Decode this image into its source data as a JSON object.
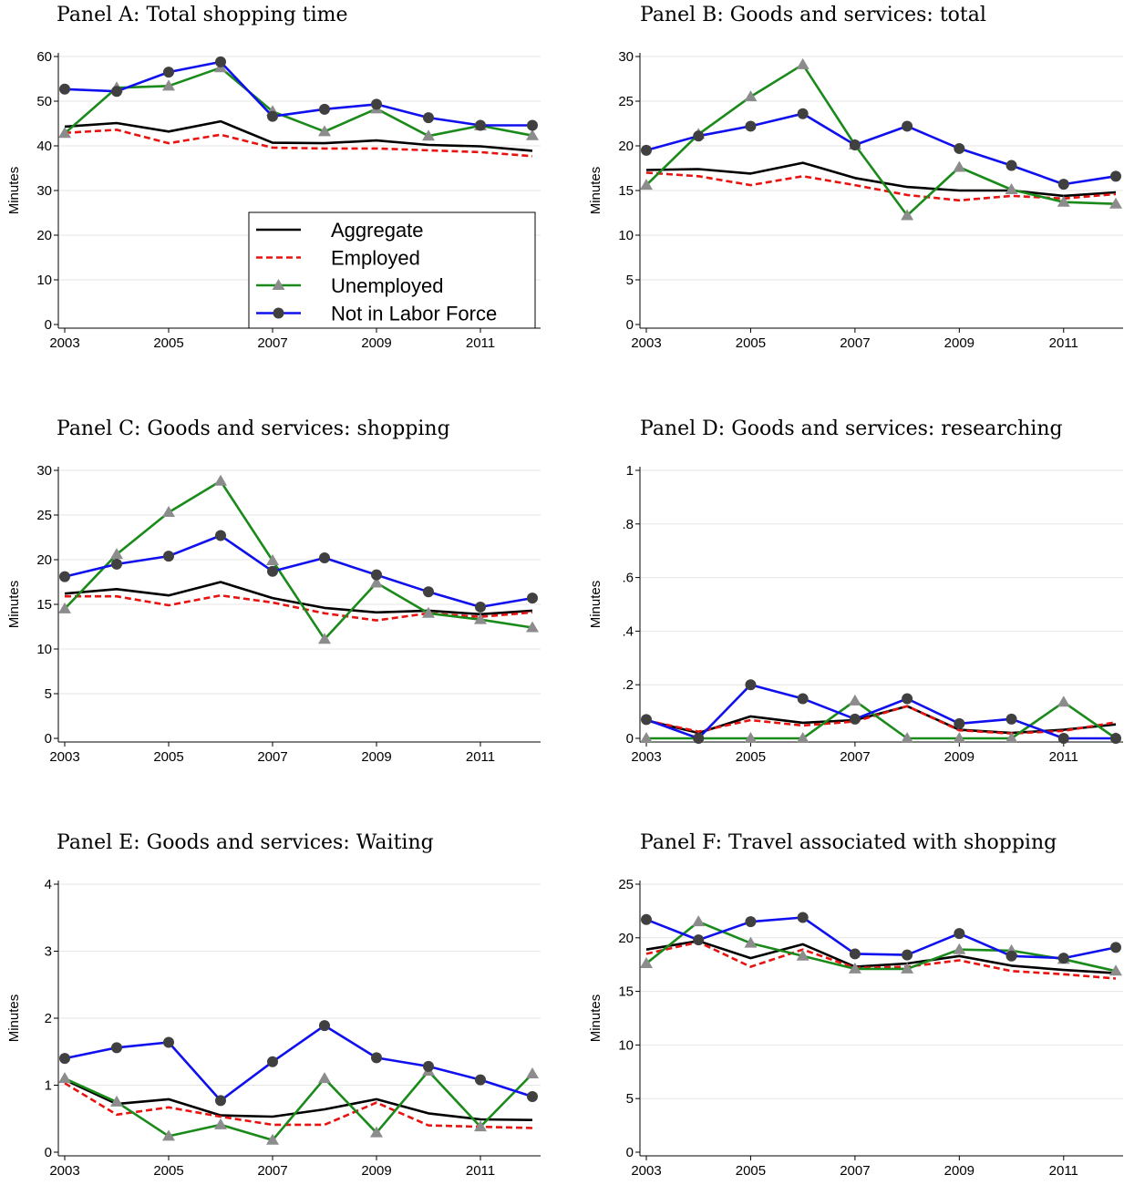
{
  "colors": {
    "aggregate": "#000000",
    "employed": "#e8120f",
    "unemployed": "#1a8a1a",
    "nilf": "#1010ee",
    "marker_triangle": "#8c8c8c",
    "marker_circle": "#404040",
    "grid": "#e6e6e6"
  },
  "legend": {
    "placement": "inside panel A, lower-right",
    "entries": [
      {
        "key": "aggregate",
        "label": "Aggregate",
        "style": "solid"
      },
      {
        "key": "employed",
        "label": "Employed",
        "style": "dashed"
      },
      {
        "key": "unemployed",
        "label": "Unemployed",
        "style": "solid",
        "marker": "triangle"
      },
      {
        "key": "nilf",
        "label": "Not in Labor Force",
        "style": "solid",
        "marker": "circle"
      }
    ]
  },
  "chart_data": [
    {
      "type": "line",
      "title": "Panel A: Total shopping time",
      "ylabel": "Minutes",
      "x": [
        2003,
        2004,
        2005,
        2006,
        2007,
        2008,
        2009,
        2010,
        2011,
        2012
      ],
      "xticks": [
        "2003",
        "2005",
        "2007",
        "2009",
        "2011"
      ],
      "yticks": [
        "0",
        "10",
        "20",
        "30",
        "40",
        "50",
        "60"
      ],
      "ylim": [
        0,
        61
      ],
      "grid": true,
      "series": [
        {
          "name": "Aggregate",
          "key": "aggregate",
          "values": [
            44.3,
            45.1,
            43.2,
            45.5,
            40.7,
            40.6,
            41.2,
            40.2,
            39.9,
            38.9
          ]
        },
        {
          "name": "Employed",
          "key": "employed",
          "values": [
            42.9,
            43.6,
            40.6,
            42.5,
            39.6,
            39.4,
            39.4,
            39.0,
            38.6,
            37.7
          ]
        },
        {
          "name": "Unemployed",
          "key": "unemployed",
          "values": [
            42.8,
            53.0,
            53.4,
            57.5,
            47.7,
            43.2,
            48.3,
            42.2,
            44.5,
            42.3
          ]
        },
        {
          "name": "Not in Labor Force",
          "key": "nilf",
          "values": [
            52.7,
            52.2,
            56.5,
            58.8,
            46.6,
            48.2,
            49.3,
            46.3,
            44.6,
            44.6
          ]
        }
      ]
    },
    {
      "type": "line",
      "title": "Panel B: Goods and services: total",
      "ylabel": "Minutes",
      "x": [
        2003,
        2004,
        2005,
        2006,
        2007,
        2008,
        2009,
        2010,
        2011,
        2012
      ],
      "xticks": [
        "2003",
        "2005",
        "2007",
        "2009",
        "2011"
      ],
      "yticks": [
        "0",
        "5",
        "10",
        "15",
        "20",
        "25",
        "30"
      ],
      "ylim": [
        0,
        30.5
      ],
      "grid": true,
      "series": [
        {
          "name": "Aggregate",
          "key": "aggregate",
          "values": [
            17.3,
            17.4,
            16.9,
            18.1,
            16.4,
            15.4,
            15.0,
            15.0,
            14.4,
            14.8
          ]
        },
        {
          "name": "Employed",
          "key": "employed",
          "values": [
            17.0,
            16.6,
            15.6,
            16.6,
            15.6,
            14.5,
            13.9,
            14.4,
            14.1,
            14.6
          ]
        },
        {
          "name": "Unemployed",
          "key": "unemployed",
          "values": [
            15.6,
            21.3,
            25.5,
            29.1,
            20.1,
            12.2,
            17.6,
            15.1,
            13.7,
            13.5
          ]
        },
        {
          "name": "Not in Labor Force",
          "key": "nilf",
          "values": [
            19.5,
            21.1,
            22.2,
            23.6,
            20.1,
            22.2,
            19.7,
            17.8,
            15.7,
            16.6
          ]
        }
      ]
    },
    {
      "type": "line",
      "title": "Panel C: Goods and services: shopping",
      "ylabel": "Minutes",
      "x": [
        2003,
        2004,
        2005,
        2006,
        2007,
        2008,
        2009,
        2010,
        2011,
        2012
      ],
      "xticks": [
        "2003",
        "2005",
        "2007",
        "2009",
        "2011"
      ],
      "yticks": [
        "0",
        "5",
        "10",
        "15",
        "20",
        "25",
        "30"
      ],
      "ylim": [
        0,
        30.5
      ],
      "grid": true,
      "series": [
        {
          "name": "Aggregate",
          "key": "aggregate",
          "values": [
            16.2,
            16.7,
            16.0,
            17.5,
            15.7,
            14.6,
            14.1,
            14.3,
            13.9,
            14.3
          ]
        },
        {
          "name": "Employed",
          "key": "employed",
          "values": [
            15.9,
            15.9,
            14.9,
            16.0,
            15.2,
            14.0,
            13.2,
            14.0,
            13.6,
            14.1
          ]
        },
        {
          "name": "Unemployed",
          "key": "unemployed",
          "values": [
            14.5,
            20.6,
            25.3,
            28.8,
            19.9,
            11.1,
            17.4,
            14.0,
            13.3,
            12.4
          ]
        },
        {
          "name": "Not in Labor Force",
          "key": "nilf",
          "values": [
            18.1,
            19.5,
            20.4,
            22.7,
            18.7,
            20.2,
            18.3,
            16.4,
            14.7,
            15.7
          ]
        }
      ]
    },
    {
      "type": "line",
      "title": "Panel D: Goods and services: researching",
      "ylabel": "Minutes",
      "x": [
        2003,
        2004,
        2005,
        2006,
        2007,
        2008,
        2009,
        2010,
        2011,
        2012
      ],
      "xticks": [
        "2003",
        "2005",
        "2007",
        "2009",
        "2011"
      ],
      "yticks": [
        "0",
        ".2",
        ".4",
        ".6",
        ".8",
        "1"
      ],
      "ylim": [
        0,
        1.02
      ],
      "grid": true,
      "series": [
        {
          "name": "Aggregate",
          "key": "aggregate",
          "values": [
            0.067,
            0.02,
            0.082,
            0.058,
            0.068,
            0.12,
            0.032,
            0.02,
            0.032,
            0.052
          ]
        },
        {
          "name": "Employed",
          "key": "employed",
          "values": [
            0.067,
            0.025,
            0.068,
            0.048,
            0.063,
            0.12,
            0.03,
            0.018,
            0.028,
            0.06
          ]
        },
        {
          "name": "Unemployed",
          "key": "unemployed",
          "values": [
            0.0,
            0.0,
            0.0,
            0.0,
            0.14,
            0.0,
            0.0,
            0.0,
            0.135,
            0.0
          ]
        },
        {
          "name": "Not in Labor Force",
          "key": "nilf",
          "values": [
            0.07,
            0.0,
            0.2,
            0.148,
            0.072,
            0.148,
            0.055,
            0.072,
            0.0,
            0.0
          ]
        }
      ]
    },
    {
      "type": "line",
      "title": "Panel E: Goods and services: Waiting",
      "ylabel": "Minutes",
      "x": [
        2003,
        2004,
        2005,
        2006,
        2007,
        2008,
        2009,
        2010,
        2011,
        2012
      ],
      "xticks": [
        "2003",
        "2005",
        "2007",
        "2009",
        "2011"
      ],
      "yticks": [
        "0",
        "1",
        "2",
        "3",
        "4"
      ],
      "ylim": [
        0,
        4.1
      ],
      "grid": true,
      "series": [
        {
          "name": "Aggregate",
          "key": "aggregate",
          "values": [
            1.08,
            0.72,
            0.79,
            0.55,
            0.53,
            0.64,
            0.79,
            0.58,
            0.49,
            0.48
          ]
        },
        {
          "name": "Employed",
          "key": "employed",
          "values": [
            1.03,
            0.56,
            0.67,
            0.53,
            0.41,
            0.41,
            0.74,
            0.4,
            0.38,
            0.36
          ]
        },
        {
          "name": "Unemployed",
          "key": "unemployed",
          "values": [
            1.1,
            0.75,
            0.24,
            0.41,
            0.18,
            1.1,
            0.29,
            1.21,
            0.38,
            1.17
          ]
        },
        {
          "name": "Not in Labor Force",
          "key": "nilf",
          "values": [
            1.4,
            1.56,
            1.64,
            0.77,
            1.35,
            1.89,
            1.41,
            1.28,
            1.08,
            0.83
          ]
        }
      ]
    },
    {
      "type": "line",
      "title": "Panel F: Travel associated with shopping",
      "ylabel": "Minutes",
      "x": [
        2003,
        2004,
        2005,
        2006,
        2007,
        2008,
        2009,
        2010,
        2011,
        2012
      ],
      "xticks": [
        "2003",
        "2005",
        "2007",
        "2009",
        "2011"
      ],
      "yticks": [
        "0",
        "5",
        "10",
        "15",
        "20",
        "25"
      ],
      "ylim": [
        0,
        25.4
      ],
      "grid": true,
      "series": [
        {
          "name": "Aggregate",
          "key": "aggregate",
          "values": [
            18.9,
            19.7,
            18.1,
            19.4,
            17.3,
            17.6,
            18.3,
            17.4,
            17.0,
            16.7
          ]
        },
        {
          "name": "Employed",
          "key": "employed",
          "values": [
            18.5,
            19.6,
            17.3,
            18.9,
            17.2,
            17.3,
            17.9,
            16.9,
            16.6,
            16.2
          ]
        },
        {
          "name": "Unemployed",
          "key": "unemployed",
          "values": [
            17.6,
            21.5,
            19.5,
            18.3,
            17.1,
            17.1,
            18.9,
            18.8,
            18.0,
            16.9
          ]
        },
        {
          "name": "Not in Labor Force",
          "key": "nilf",
          "values": [
            21.7,
            19.8,
            21.5,
            21.9,
            18.5,
            18.4,
            20.4,
            18.3,
            18.1,
            19.1
          ]
        }
      ]
    }
  ]
}
